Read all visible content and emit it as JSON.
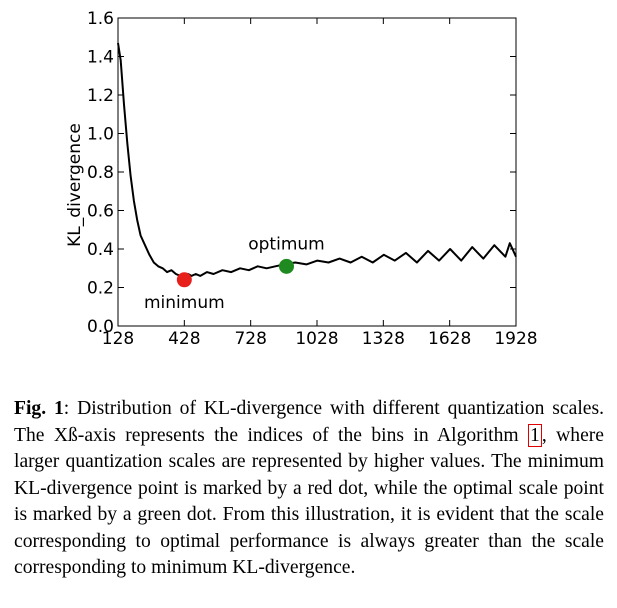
{
  "chart_data": {
    "type": "line",
    "title": "",
    "xlabel": "",
    "ylabel": "KL_divergence",
    "xlim": [
      128,
      1928
    ],
    "ylim": [
      0.0,
      1.6
    ],
    "x_ticks": [
      128,
      428,
      728,
      1028,
      1328,
      1628,
      1928
    ],
    "y_ticks": [
      0.0,
      0.2,
      0.4,
      0.6,
      0.8,
      1.0,
      1.2,
      1.4,
      1.6
    ],
    "x_tick_labels": [
      "128",
      "428",
      "728",
      "1028",
      "1328",
      "1628",
      "1928"
    ],
    "y_tick_labels": [
      "0.0",
      "0.2",
      "0.4",
      "0.6",
      "0.8",
      "1.0",
      "1.2",
      "1.4",
      "1.6"
    ],
    "series": [
      {
        "name": "KL_divergence",
        "color": "#000000",
        "x": [
          128,
          140,
          155,
          170,
          185,
          200,
          215,
          230,
          250,
          270,
          290,
          310,
          330,
          350,
          370,
          390,
          410,
          428,
          445,
          460,
          480,
          500,
          530,
          560,
          600,
          640,
          680,
          720,
          760,
          800,
          840,
          880,
          930,
          980,
          1030,
          1080,
          1130,
          1180,
          1230,
          1280,
          1330,
          1380,
          1430,
          1480,
          1530,
          1580,
          1630,
          1680,
          1730,
          1780,
          1830,
          1880,
          1900,
          1928
        ],
        "y": [
          1.47,
          1.38,
          1.15,
          0.95,
          0.78,
          0.65,
          0.55,
          0.47,
          0.42,
          0.37,
          0.33,
          0.31,
          0.3,
          0.28,
          0.29,
          0.27,
          0.26,
          0.25,
          0.27,
          0.26,
          0.27,
          0.26,
          0.28,
          0.27,
          0.29,
          0.28,
          0.3,
          0.29,
          0.31,
          0.3,
          0.31,
          0.32,
          0.33,
          0.32,
          0.34,
          0.33,
          0.35,
          0.33,
          0.36,
          0.33,
          0.37,
          0.34,
          0.38,
          0.33,
          0.39,
          0.34,
          0.4,
          0.34,
          0.41,
          0.35,
          0.42,
          0.36,
          0.43,
          0.36
        ]
      }
    ],
    "points": [
      {
        "name": "minimum",
        "label": "minimum",
        "x": 428,
        "y": 0.24,
        "color": "#e8201c"
      },
      {
        "name": "optimum",
        "label": "optimum",
        "x": 890,
        "y": 0.31,
        "color": "#1f8a1f"
      }
    ]
  },
  "caption": {
    "fig_label": "Fig. 1",
    "text_before_ref": ": Distribution of KL-divergence with different quantization scales. The Xß-axis represents the indices of the bins in Algorithm ",
    "ref": "1",
    "text_after_ref": ", where larger quantization scales are represented by higher values. The minimum KL-divergence point is marked by a red dot, while the optimal scale point is marked by a green dot. From this illustration, it is evident that the scale corresponding to optimal performance is always greater than the scale corresponding to minimum KL-divergence."
  }
}
